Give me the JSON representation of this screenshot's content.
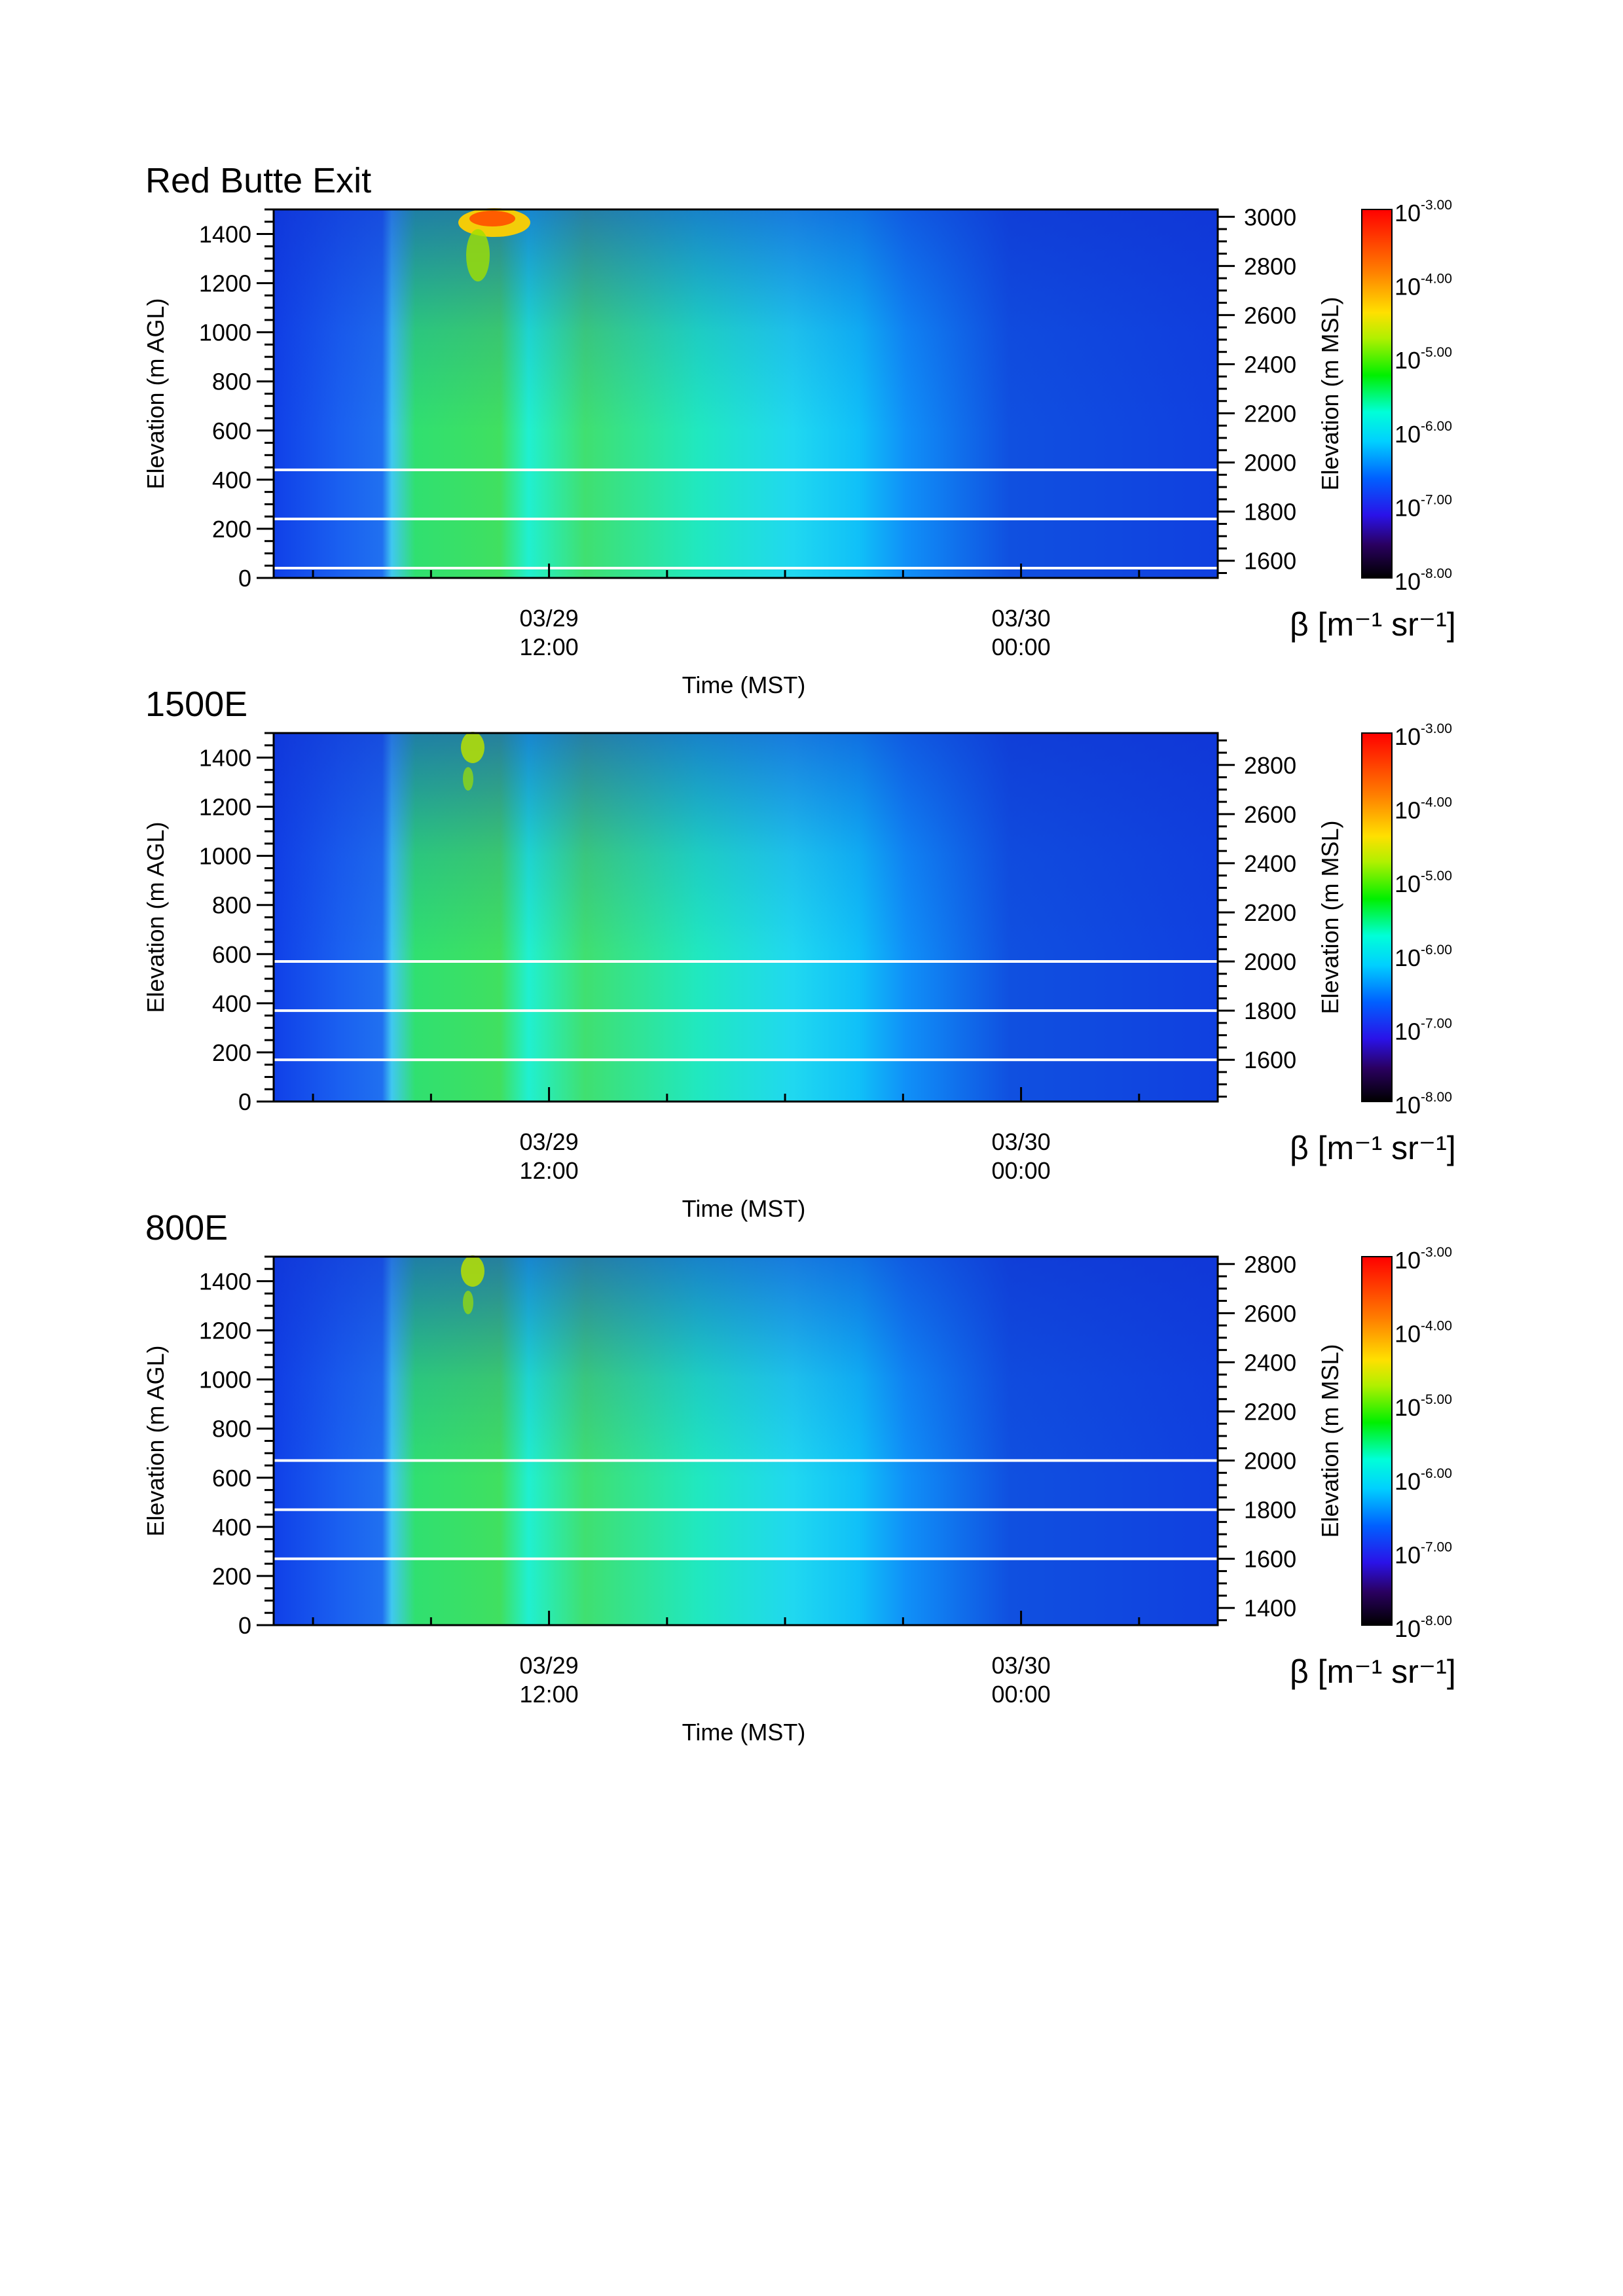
{
  "chart_data": [
    {
      "type": "heatmap",
      "title": "Red Butte Exit",
      "xlabel": "Time (MST)",
      "ylabel": "Elevation (m AGL)",
      "ylabel_right": "Elevation (m MSL)",
      "ylim": [
        0,
        1500
      ],
      "ylim_right": [
        1530,
        3030
      ],
      "yticks": [
        0,
        200,
        400,
        600,
        800,
        1000,
        1200,
        1400
      ],
      "yticks_right": [
        1600,
        1800,
        2000,
        2200,
        2400,
        2600,
        2800,
        3000
      ],
      "xticks": [
        {
          "date": "03/29",
          "time": "12:00",
          "hours": 12
        },
        {
          "date": "03/30",
          "time": "00:00",
          "hours": 24
        }
      ],
      "xlim_hours": [
        5,
        29
      ],
      "reference_lines_m_agl": [
        40,
        240,
        440
      ],
      "colorbar": {
        "label": "β [m⁻¹ sr⁻¹]",
        "scale": "log",
        "labels": [
          {
            "base": "10",
            "exp": "-3.00"
          },
          {
            "base": "10",
            "exp": "-4.00"
          },
          {
            "base": "10",
            "exp": "-5.00"
          },
          {
            "base": "10",
            "exp": "-6.00"
          },
          {
            "base": "10",
            "exp": "-7.00"
          },
          {
            "base": "10",
            "exp": "-8.00"
          }
        ]
      }
    },
    {
      "type": "heatmap",
      "title": "1500E",
      "xlabel": "Time (MST)",
      "ylabel": "Elevation (m AGL)",
      "ylabel_right": "Elevation (m MSL)",
      "ylim": [
        0,
        1500
      ],
      "ylim_right": [
        1430,
        2930
      ],
      "yticks": [
        0,
        200,
        400,
        600,
        800,
        1000,
        1200,
        1400
      ],
      "yticks_right": [
        1600,
        1800,
        2000,
        2200,
        2400,
        2600,
        2800
      ],
      "xticks": [
        {
          "date": "03/29",
          "time": "12:00",
          "hours": 12
        },
        {
          "date": "03/30",
          "time": "00:00",
          "hours": 24
        }
      ],
      "xlim_hours": [
        5,
        29
      ],
      "reference_lines_m_agl": [
        170,
        370,
        570
      ],
      "colorbar": {
        "label": "β [m⁻¹ sr⁻¹]",
        "scale": "log",
        "labels": [
          {
            "base": "10",
            "exp": "-3.00"
          },
          {
            "base": "10",
            "exp": "-4.00"
          },
          {
            "base": "10",
            "exp": "-5.00"
          },
          {
            "base": "10",
            "exp": "-6.00"
          },
          {
            "base": "10",
            "exp": "-7.00"
          },
          {
            "base": "10",
            "exp": "-8.00"
          }
        ]
      }
    },
    {
      "type": "heatmap",
      "title": "800E",
      "xlabel": "Time (MST)",
      "ylabel": "Elevation (m AGL)",
      "ylabel_right": "Elevation (m MSL)",
      "ylim": [
        0,
        1500
      ],
      "ylim_right": [
        1330,
        2830
      ],
      "yticks": [
        0,
        200,
        400,
        600,
        800,
        1000,
        1200,
        1400
      ],
      "yticks_right": [
        1400,
        1600,
        1800,
        2000,
        2200,
        2400,
        2600,
        2800
      ],
      "xticks": [
        {
          "date": "03/29",
          "time": "12:00",
          "hours": 12
        },
        {
          "date": "03/30",
          "time": "00:00",
          "hours": 24
        }
      ],
      "xlim_hours": [
        5,
        29
      ],
      "reference_lines_m_agl": [
        270,
        470,
        670
      ],
      "colorbar": {
        "label": "β [m⁻¹ sr⁻¹]",
        "scale": "log",
        "labels": [
          {
            "base": "10",
            "exp": "-3.00"
          },
          {
            "base": "10",
            "exp": "-4.00"
          },
          {
            "base": "10",
            "exp": "-5.00"
          },
          {
            "base": "10",
            "exp": "-6.00"
          },
          {
            "base": "10",
            "exp": "-7.00"
          },
          {
            "base": "10",
            "exp": "-8.00"
          }
        ]
      }
    }
  ]
}
